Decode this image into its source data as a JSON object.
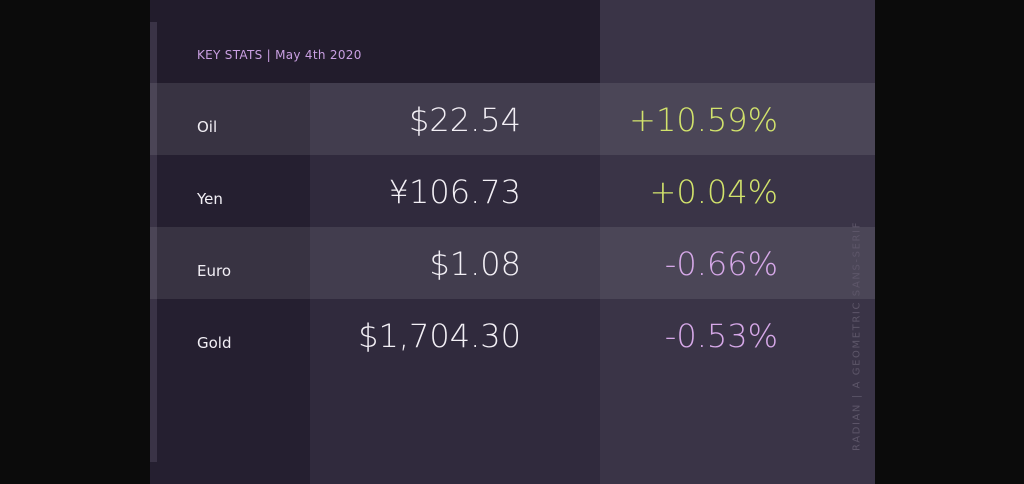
{
  "header": {
    "title": "KEY STATS | May 4th 2020"
  },
  "table": {
    "rows": [
      [
        "Oil",
        "$22.54",
        "+10.59%"
      ],
      [
        "Yen",
        "¥106.73",
        "+0.04%"
      ],
      [
        "Euro",
        "$1.08",
        "-0.66%"
      ],
      [
        "Gold",
        "$1,704.30",
        "-0.53%"
      ]
    ]
  },
  "side_text": "RADIAN | A GEOMETRIC SANS-SERIF"
}
